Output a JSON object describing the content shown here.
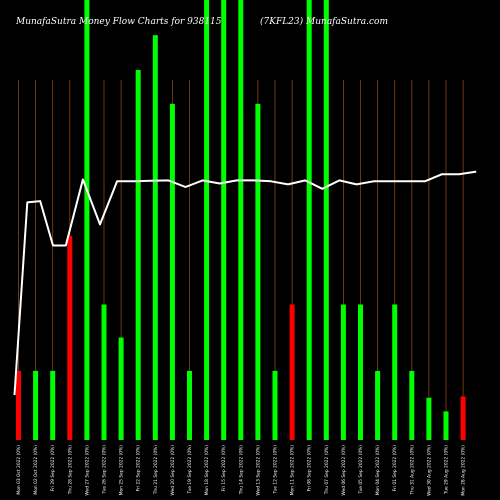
{
  "header": {
    "left": "MunafaSutra  Money Flow  Charts for 938115",
    "right": "(7KFL23) MunafaSutra.com"
  },
  "chart_data": {
    "type": "bar",
    "bar_max": 100,
    "line_max": 100,
    "categories": [
      "Mon 03 Oct 2022 (0%)",
      "Mon 02 Oct 2022 (0%)",
      "Fri 29 Sep 2022 (0%)",
      "Thu 28 Sep 2022 (0%)",
      "Wed 27 Sep 2022 (0%)",
      "Tue 26 Sep 2022 (0%)",
      "Mon 25 Sep 2022 (0%)",
      "Fri 22 Sep 2022 (0%)",
      "Thu 21 Sep 2022 (0%)",
      "Wed 20 Sep 2022 (0%)",
      "Tue 19 Sep 2022 (0%)",
      "Mon 18 Sep 2022 (0%)",
      "Fri 15 Sep 2022 (0%)",
      "Thu 14 Sep 2022 (0%)",
      "Wed 13 Sep 2022 (0%)",
      "Tue 12 Sep 2022 (0%)",
      "Mon 11 Sep 2022 (0%)",
      "Fri 08 Sep 2022 (0%)",
      "Thu 07 Sep 2022 (0%)",
      "Wed 06 Sep 2022 (0%)",
      "Tue 05 Sep 2022 (0%)",
      "Mon 04 Sep 2022 (0%)",
      "Fri 01 Sep 2022 (0%)",
      "Thu 31 Aug 2022 (0%)",
      "Wed 30 Aug 2022 (0%)",
      "Tue 29 Aug 2022 (0%)",
      "Mon 28 Aug 2022 (0%)"
    ],
    "bars": [
      {
        "value": 15.7,
        "color": "red"
      },
      {
        "value": 15.7,
        "color": "green"
      },
      {
        "value": 15.7,
        "color": "green"
      },
      {
        "value": 46.4,
        "color": "red"
      },
      {
        "value": 100,
        "color": "green"
      },
      {
        "value": 30.8,
        "color": "green"
      },
      {
        "value": 23.3,
        "color": "green"
      },
      {
        "value": 84.1,
        "color": "green"
      },
      {
        "value": 92.0,
        "color": "green"
      },
      {
        "value": 76.4,
        "color": "green"
      },
      {
        "value": 15.7,
        "color": "green"
      },
      {
        "value": 100,
        "color": "green"
      },
      {
        "value": 100,
        "color": "green"
      },
      {
        "value": 100,
        "color": "green"
      },
      {
        "value": 76.4,
        "color": "green"
      },
      {
        "value": 15.7,
        "color": "green"
      },
      {
        "value": 30.8,
        "color": "red"
      },
      {
        "value": 100,
        "color": "green"
      },
      {
        "value": 100,
        "color": "green"
      },
      {
        "value": 30.8,
        "color": "green"
      },
      {
        "value": 30.8,
        "color": "green"
      },
      {
        "value": 15.7,
        "color": "green"
      },
      {
        "value": 30.8,
        "color": "green"
      },
      {
        "value": 15.7,
        "color": "green"
      },
      {
        "value": 9.6,
        "color": "green"
      },
      {
        "value": 6.5,
        "color": "green"
      },
      {
        "value": 9.9,
        "color": "red"
      }
    ],
    "line": {
      "name": "",
      "values": [
        [
          0,
          10.2
        ],
        [
          1.5,
          54.0
        ],
        [
          3.0,
          54.3
        ],
        [
          4.5,
          44.2
        ],
        [
          6.0,
          44.2
        ],
        [
          8.0,
          59.2
        ],
        [
          10.0,
          49.0
        ],
        [
          12.0,
          58.8
        ],
        [
          14.0,
          58.8
        ],
        [
          16.0,
          58.9
        ],
        [
          18.0,
          59.0
        ],
        [
          20.0,
          57.5
        ],
        [
          22.0,
          59.0
        ],
        [
          24.0,
          58.3
        ],
        [
          26.0,
          59.0
        ],
        [
          28.0,
          59.0
        ],
        [
          30.0,
          58.8
        ],
        [
          32.0,
          58.1
        ],
        [
          34.0,
          59.0
        ],
        [
          36.0,
          57.1
        ],
        [
          38.0,
          59.0
        ],
        [
          40.0,
          58.1
        ],
        [
          42.0,
          58.8
        ],
        [
          44.0,
          58.8
        ],
        [
          46.0,
          58.8
        ],
        [
          48.0,
          58.8
        ],
        [
          50.0,
          60.4
        ],
        [
          52.0,
          60.4
        ],
        [
          54.0,
          61.0
        ]
      ]
    },
    "grid": true,
    "colors": {
      "background": "#000000",
      "green": "#00ff00",
      "red": "#ff0000",
      "grid": "#8b4513",
      "line": "#ffffff"
    }
  }
}
